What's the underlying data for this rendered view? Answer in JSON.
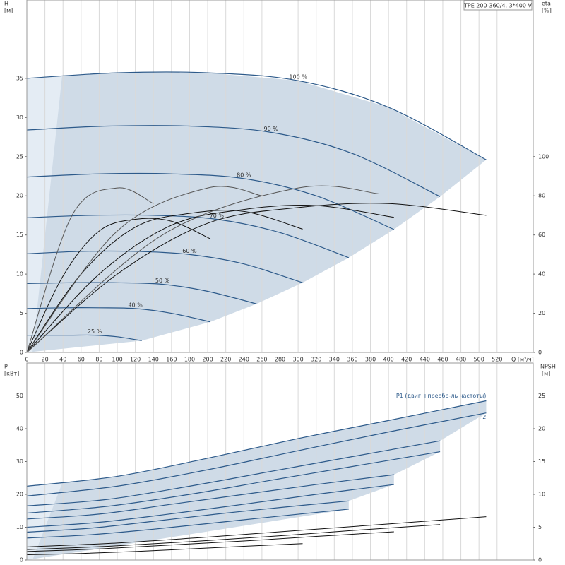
{
  "chart_data": [
    {
      "type": "line",
      "title": "TPE 200-360/4, 3*400 V",
      "ylabel": "H",
      "yunit": "[м]",
      "y2label": "eta",
      "y2unit": "[%]",
      "xlabel": "Q [м³/ч]",
      "xlim": [
        0,
        560
      ],
      "xticks": [
        0,
        20,
        40,
        60,
        80,
        100,
        120,
        140,
        160,
        180,
        200,
        220,
        240,
        260,
        280,
        300,
        320,
        340,
        360,
        380,
        400,
        420,
        440,
        460,
        480,
        500,
        520
      ],
      "ylim": [
        0,
        45
      ],
      "yticks": [
        0,
        5,
        10,
        15,
        20,
        25,
        30,
        35
      ],
      "y2lim": [
        0,
        180
      ],
      "y2ticks": [
        0,
        20,
        40,
        60,
        80,
        100
      ],
      "grid": true,
      "series": [
        {
          "name": "100 %",
          "color": "#2d5a8a",
          "x": [
            0,
            100,
            200,
            300,
            400,
            508
          ],
          "values": [
            35,
            35.7,
            35.7,
            34.7,
            31.3,
            24.6
          ]
        },
        {
          "name": "90 %",
          "color": "#2d5a8a",
          "x": [
            0,
            90,
            180,
            270,
            360,
            457
          ],
          "values": [
            28.4,
            28.9,
            28.9,
            28.1,
            25.4,
            19.9
          ]
        },
        {
          "name": "80 %",
          "color": "#2d5a8a",
          "x": [
            0,
            80,
            160,
            240,
            320,
            406
          ],
          "values": [
            22.4,
            22.8,
            22.8,
            22.2,
            20.0,
            15.7
          ]
        },
        {
          "name": "70 %",
          "color": "#2d5a8a",
          "x": [
            0,
            70,
            140,
            210,
            280,
            356
          ],
          "values": [
            17.2,
            17.5,
            17.5,
            17.0,
            15.3,
            12.1
          ]
        },
        {
          "name": "60 %",
          "color": "#2d5a8a",
          "x": [
            0,
            60,
            120,
            180,
            240,
            305
          ],
          "values": [
            12.6,
            12.9,
            12.9,
            12.5,
            11.3,
            8.9
          ]
        },
        {
          "name": "50 %",
          "color": "#2d5a8a",
          "x": [
            0,
            50,
            100,
            150,
            200,
            254
          ],
          "values": [
            8.8,
            8.9,
            8.9,
            8.7,
            7.8,
            6.2
          ]
        },
        {
          "name": "40 %",
          "color": "#2d5a8a",
          "x": [
            0,
            40,
            80,
            120,
            160,
            203
          ],
          "values": [
            5.6,
            5.7,
            5.7,
            5.6,
            5.0,
            3.9
          ]
        },
        {
          "name": "25 %",
          "color": "#2d5a8a",
          "x": [
            0,
            25,
            50,
            75,
            100,
            127
          ],
          "values": [
            2.2,
            2.2,
            2.2,
            2.2,
            2.0,
            1.5
          ]
        },
        {
          "axis": "y2",
          "color": "#111111",
          "x": [
            0,
            100,
            200,
            300,
            400,
            508
          ],
          "values": [
            0,
            40,
            66,
            74,
            76,
            70
          ]
        },
        {
          "axis": "y2",
          "color": "#111111",
          "x": [
            0,
            80,
            160,
            240,
            320,
            406
          ],
          "values": [
            0,
            40,
            65,
            73,
            75,
            69
          ]
        },
        {
          "axis": "y2",
          "color": "#111111",
          "x": [
            0,
            60,
            120,
            180,
            240,
            305
          ],
          "values": [
            0,
            40,
            64,
            71,
            72,
            63
          ]
        },
        {
          "axis": "y2",
          "color": "#111111",
          "x": [
            0,
            40,
            80,
            120,
            160,
            203
          ],
          "values": [
            0,
            39,
            62,
            68,
            67,
            58
          ]
        },
        {
          "axis": "y2",
          "color": "#555555",
          "x": [
            0,
            50,
            100,
            140
          ],
          "values": [
            0,
            70,
            84,
            76
          ]
        },
        {
          "axis": "y2",
          "color": "#555555",
          "x": [
            0,
            100,
            200,
            260
          ],
          "values": [
            0,
            62,
            84,
            80
          ]
        },
        {
          "axis": "y2",
          "color": "#555555",
          "x": [
            0,
            150,
            300,
            390
          ],
          "values": [
            0,
            60,
            84,
            81
          ]
        }
      ]
    },
    {
      "type": "line",
      "ylabel": "P",
      "yunit": "[кВт]",
      "y2label": "NPSH",
      "y2unit": "[м]",
      "xlim": [
        0,
        560
      ],
      "ylim": [
        0,
        60
      ],
      "yticks": [
        0,
        10,
        20,
        30,
        40,
        50
      ],
      "y2lim": [
        0,
        30
      ],
      "y2ticks": [
        0,
        5,
        10,
        15,
        20,
        25
      ],
      "series": [
        {
          "name": "P1 (двиг.+преобр-ль частоты)",
          "color": "#2d5a8a",
          "x": [
            0,
            100,
            200,
            300,
            400,
            508
          ],
          "values": [
            22.5,
            25.5,
            31,
            37,
            42.5,
            48.5
          ]
        },
        {
          "name": "P2",
          "color": "#2d5a8a",
          "x": [
            0,
            100,
            200,
            300,
            400,
            508
          ],
          "values": [
            19.5,
            22.5,
            27.5,
            33.3,
            39,
            44.8
          ]
        },
        {
          "color": "#2d5a8a",
          "x": [
            0,
            90,
            180,
            270,
            360,
            457
          ],
          "values": [
            16.5,
            18.5,
            22.5,
            27,
            31.5,
            36.3
          ]
        },
        {
          "color": "#2d5a8a",
          "x": [
            0,
            90,
            180,
            270,
            360,
            457
          ],
          "values": [
            14.3,
            16.4,
            20,
            24.3,
            28.5,
            33
          ]
        },
        {
          "color": "#2d5a8a",
          "x": [
            0,
            80,
            160,
            240,
            320,
            406
          ],
          "values": [
            12.5,
            14,
            17,
            20,
            23,
            26
          ]
        },
        {
          "color": "#2d5a8a",
          "x": [
            0,
            80,
            160,
            240,
            320,
            406
          ],
          "values": [
            10,
            11.5,
            14.1,
            17,
            20,
            23
          ]
        },
        {
          "color": "#2d5a8a",
          "x": [
            0,
            70,
            140,
            210,
            280,
            356
          ],
          "values": [
            8.5,
            9.7,
            11.8,
            14,
            16,
            18
          ]
        },
        {
          "color": "#2d5a8a",
          "x": [
            0,
            70,
            140,
            210,
            280,
            356
          ],
          "values": [
            6.7,
            7.7,
            9.4,
            11.4,
            13.4,
            15.5
          ]
        },
        {
          "axis": "y2",
          "color": "#111111",
          "x": [
            0,
            100,
            200,
            300,
            400,
            508
          ],
          "values": [
            2,
            2.6,
            3.5,
            4.5,
            5.5,
            6.6
          ]
        },
        {
          "axis": "y2",
          "color": "#111111",
          "x": [
            0,
            90,
            180,
            270,
            360,
            457
          ],
          "values": [
            1.6,
            2.1,
            2.8,
            3.6,
            4.5,
            5.4
          ]
        },
        {
          "axis": "y2",
          "color": "#111111",
          "x": [
            0,
            80,
            160,
            240,
            320,
            406
          ],
          "values": [
            1.3,
            1.7,
            2.3,
            2.9,
            3.6,
            4.3
          ]
        },
        {
          "axis": "y2",
          "color": "#111111",
          "x": [
            0,
            60,
            120,
            180,
            240,
            305
          ],
          "values": [
            0.8,
            1,
            1.3,
            1.7,
            2.1,
            2.5
          ]
        }
      ]
    }
  ]
}
